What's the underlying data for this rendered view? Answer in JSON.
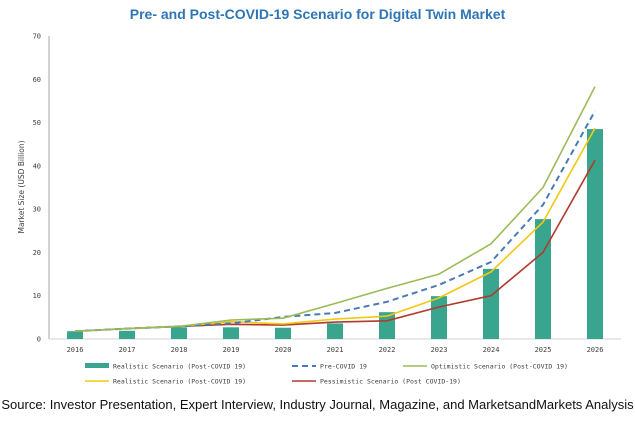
{
  "title": "Pre- and Post-COVID-19 Scenario for Digital Twin Market",
  "source": "Source: Investor Presentation, Expert Interview, Industry Journal, Magazine, and MarketsandMarkets Analysis",
  "chart_data": {
    "type": "bar+line",
    "title": "Pre- and Post-COVID-19 Scenario for Digital Twin Market",
    "xlabel": "",
    "ylabel": "Market Size (USD Billion)",
    "ylim": [
      0,
      70
    ],
    "yticks": [
      "0",
      "10",
      "20",
      "30",
      "40",
      "50",
      "60",
      "70"
    ],
    "categories": [
      "2016",
      "2017",
      "2018",
      "2019",
      "2020",
      "2021",
      "2022",
      "2023",
      "2024",
      "2025",
      "2026"
    ],
    "grid": false,
    "legend_position": "bottom",
    "series": [
      {
        "name": "Realistic Scenario (Post-COVID 19)",
        "kind": "bar",
        "color": "#3aa58e",
        "values": [
          1.8,
          1.9,
          2.7,
          2.7,
          2.6,
          3.6,
          6.2,
          9.9,
          16.2,
          27.7,
          48.5
        ]
      },
      {
        "name": "Pre-COVID 19",
        "kind": "line",
        "dash": true,
        "color": "#4a7ab5",
        "values": [
          1.8,
          2.4,
          2.9,
          3.6,
          5.1,
          6.0,
          8.6,
          12.5,
          17.8,
          31.0,
          52.7
        ]
      },
      {
        "name": "Optimistic Scenario (Post-COVID 19)",
        "kind": "line",
        "dash": false,
        "color": "#9bbb59",
        "values": [
          1.8,
          2.4,
          2.9,
          4.4,
          4.8,
          8.2,
          11.7,
          15.0,
          22.0,
          35.0,
          58.3
        ]
      },
      {
        "name": "Realistic Scenario (Post-COVID 19)",
        "kind": "line",
        "dash": false,
        "color": "#f2c811",
        "values": [
          1.8,
          2.4,
          2.9,
          4.0,
          3.5,
          4.6,
          5.3,
          9.5,
          15.5,
          27.0,
          48.7
        ]
      },
      {
        "name": "Pessimistic Scenario (Post COVID-19)",
        "kind": "line",
        "dash": false,
        "color": "#b03a2e",
        "values": [
          1.8,
          2.4,
          2.9,
          3.4,
          3.2,
          3.9,
          4.2,
          7.4,
          10.0,
          20.0,
          41.3
        ]
      }
    ]
  }
}
